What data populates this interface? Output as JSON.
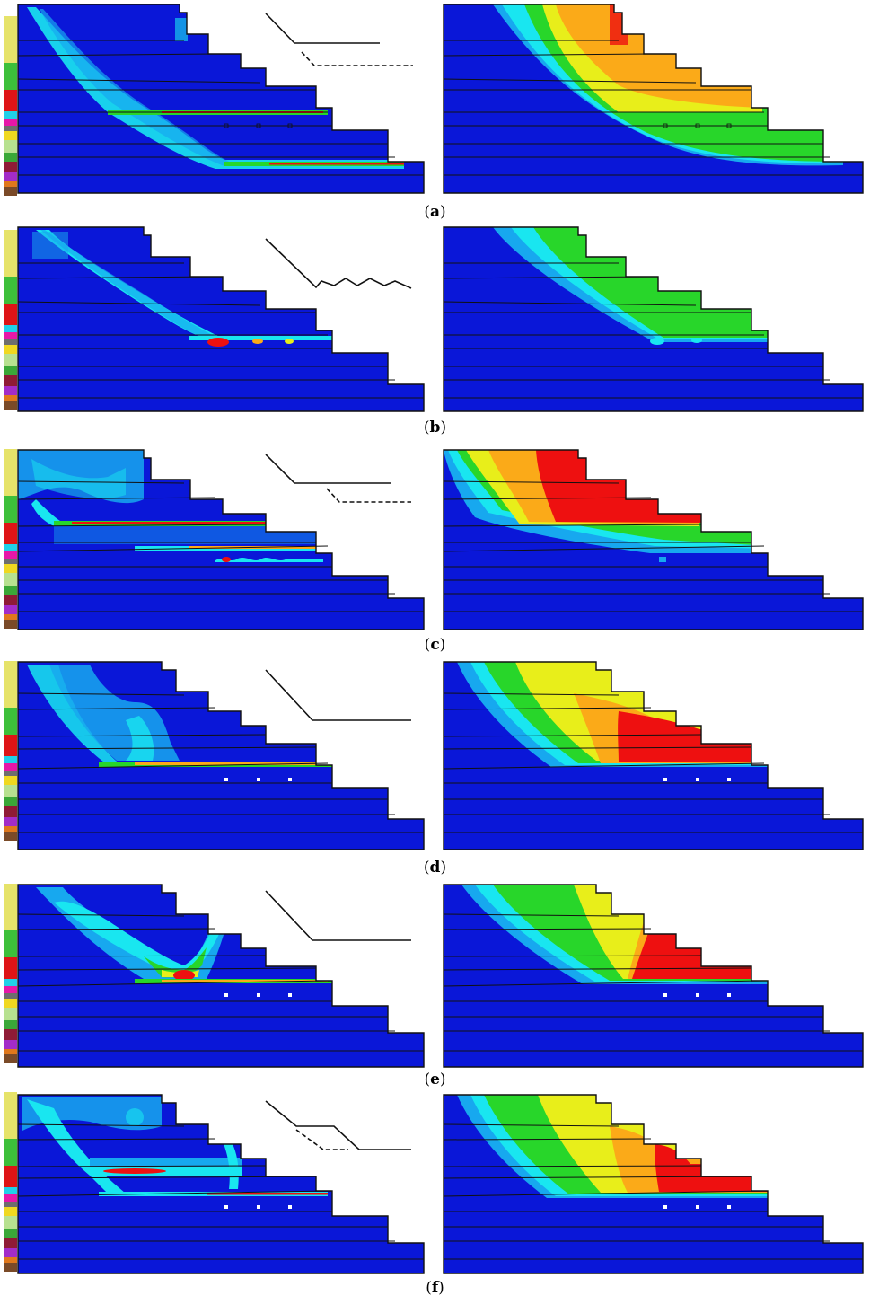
{
  "colors": {
    "blue": "#0a17d8",
    "cyan": "#19e6f0",
    "aqua": "#17a8ef",
    "green": "#28d62a",
    "yellow": "#e8ee1a",
    "orange": "#fbaa18",
    "red": "#ee1010",
    "outline": "#111111"
  },
  "legend_colors": [
    "#e6e36a",
    "#e6e36a",
    "#3dbf3a",
    "#de1416",
    "#de1416",
    "#20d0e8",
    "#e617a8",
    "#6e6e6e",
    "#f0d820",
    "#b7e190",
    "#3aa838",
    "#8f1b36",
    "#a32cc8",
    "#e0781c",
    "#7a4a28"
  ],
  "rows": [
    {
      "id": "a",
      "caption": "a",
      "mechanism": "two-step"
    },
    {
      "id": "b",
      "caption": "b",
      "mechanism": "stepped-wavy"
    },
    {
      "id": "c",
      "caption": "c",
      "mechanism": "two-step"
    },
    {
      "id": "d",
      "caption": "d",
      "mechanism": "single"
    },
    {
      "id": "e",
      "caption": "e",
      "mechanism": "single"
    },
    {
      "id": "f",
      "caption": "f",
      "mechanism": "double-step"
    }
  ]
}
